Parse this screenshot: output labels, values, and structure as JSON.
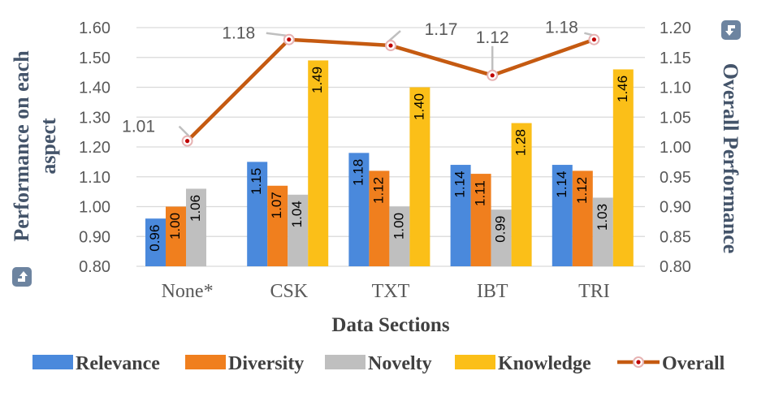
{
  "chart_data": {
    "type": "bar",
    "categories": [
      "None*",
      "CSK",
      "TXT",
      "IBT",
      "TRI"
    ],
    "series": [
      {
        "name": "Relevance",
        "color": "#4a89dc",
        "values": [
          0.96,
          1.15,
          1.18,
          1.14,
          1.14
        ],
        "labels": [
          "0.96",
          "1.15",
          "1.18",
          "1.14",
          "1.14"
        ]
      },
      {
        "name": "Diversity",
        "color": "#f07f1e",
        "values": [
          1.0,
          1.07,
          1.12,
          1.11,
          1.12
        ],
        "labels": [
          "1.00",
          "1.07",
          "1.12",
          "1.11",
          "1.12"
        ]
      },
      {
        "name": "Novelty",
        "color": "#bfbfbf",
        "values": [
          1.06,
          1.04,
          1.0,
          0.99,
          1.03
        ],
        "labels": [
          "1.06",
          "1.04",
          "1.00",
          "0.99",
          "1.03"
        ]
      },
      {
        "name": "Knowledge",
        "color": "#fbbf18",
        "values": [
          null,
          1.49,
          1.4,
          1.28,
          1.46
        ],
        "labels": [
          "",
          "1.49",
          "1.40",
          "1.28",
          "1.46"
        ]
      }
    ],
    "line_series": {
      "name": "Overall",
      "color": "#c55a11",
      "values": [
        1.01,
        1.18,
        1.17,
        1.12,
        1.18
      ],
      "labels": [
        "1.01",
        "1.18",
        "1.17",
        "1.12",
        "1.18"
      ]
    },
    "left_axis": {
      "title_line1": "Performance on each",
      "title_line2": "aspect",
      "ylim": [
        0.8,
        1.6
      ],
      "ticks": [
        "0.80",
        "0.90",
        "1.00",
        "1.10",
        "1.20",
        "1.30",
        "1.40",
        "1.50",
        "1.60"
      ]
    },
    "right_axis": {
      "title": "Overall Performance",
      "ylim": [
        0.8,
        1.2
      ],
      "ticks": [
        "0.80",
        "0.85",
        "0.90",
        "0.95",
        "1.00",
        "1.05",
        "1.10",
        "1.15",
        "1.20"
      ]
    },
    "xlabel": "Data Sections",
    "grid": true,
    "legend_position": "bottom",
    "axis_title_arrow_color": "#6d84a0"
  }
}
